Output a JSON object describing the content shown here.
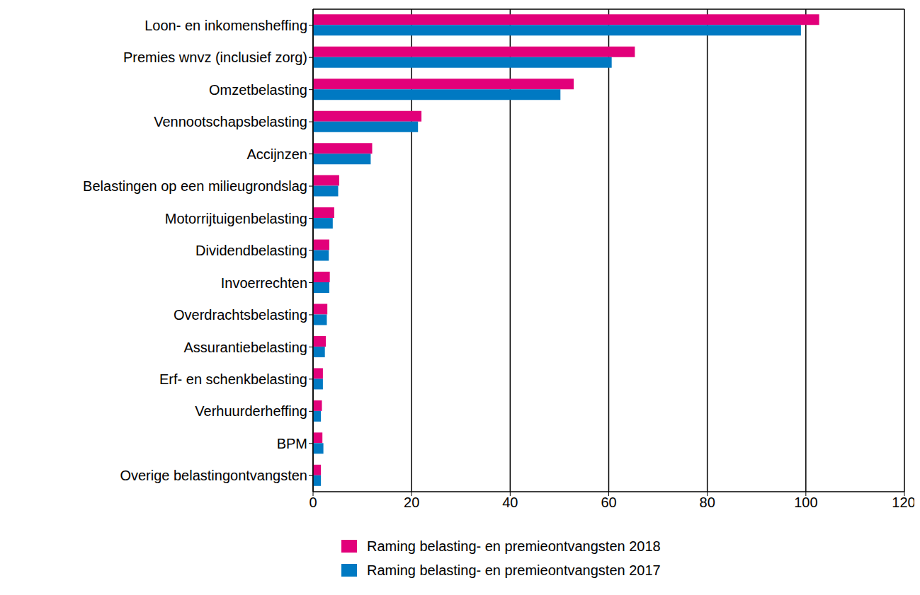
{
  "chart_data": {
    "type": "bar",
    "orientation": "horizontal",
    "grid": true,
    "legend": "bottom",
    "categories": [
      "Loon- en inkomensheffing",
      "Premies wnvz (inclusief zorg)",
      "Omzetbelasting",
      "Vennootschapsbelasting",
      "Accijnzen",
      "Belastingen op een milieugrondslag",
      "Motorrijtuigenbelasting",
      "Dividendbelasting",
      "Invoerrechten",
      "Overdrachtsbelasting",
      "Assurantiebelasting",
      "Erf- en schenkbelasting",
      "Verhuurderheffing",
      "BPM",
      "Overige belastingontvangsten"
    ],
    "series": [
      {
        "name": "Raming belasting- en premieontvangsten 2018",
        "color": "#e2007a",
        "values": [
          102.7,
          65.3,
          52.9,
          22.0,
          12.0,
          5.3,
          4.3,
          3.3,
          3.4,
          2.9,
          2.6,
          2.0,
          1.8,
          1.9,
          1.6
        ]
      },
      {
        "name": "Raming belasting- en premieontvangsten 2017",
        "color": "#0079c2",
        "values": [
          99.0,
          60.6,
          50.2,
          21.3,
          11.7,
          5.1,
          4.0,
          3.2,
          3.3,
          2.8,
          2.4,
          2.0,
          1.6,
          2.1,
          1.6
        ]
      }
    ],
    "xlim": [
      0,
      120
    ],
    "xticks": [
      0,
      20,
      40,
      60,
      80,
      100,
      120
    ]
  }
}
